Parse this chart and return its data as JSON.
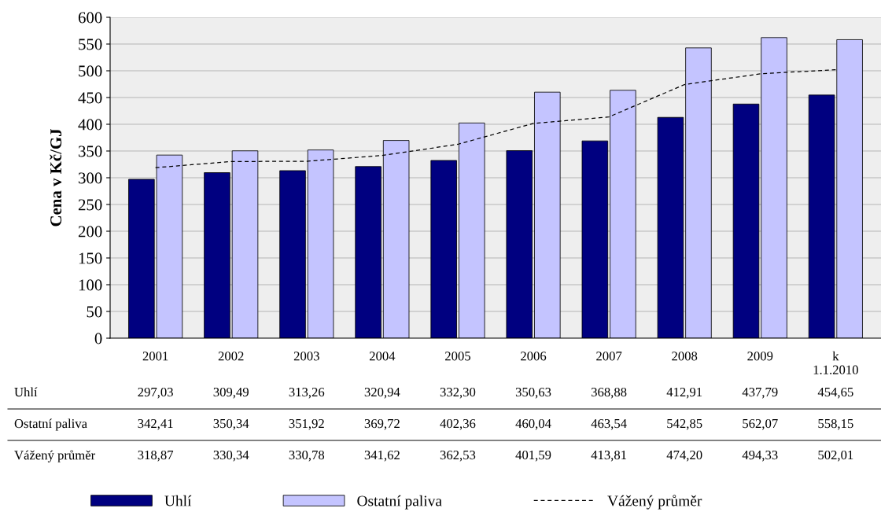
{
  "chart_data": {
    "type": "bar",
    "ylabel": "Cena v Kč/GJ",
    "categories": [
      "2001",
      "2002",
      "2003",
      "2004",
      "2005",
      "2006",
      "2007",
      "2008",
      "2009",
      "k\n1.1.2010"
    ],
    "series": [
      {
        "name": "Uhlí",
        "color": "#000080",
        "values": [
          297.03,
          309.49,
          313.26,
          320.94,
          332.3,
          350.63,
          368.88,
          412.91,
          437.79,
          454.65
        ],
        "value_labels": [
          "297,03",
          "309,49",
          "313,26",
          "320,94",
          "332,30",
          "350,63",
          "368,88",
          "412,91",
          "437,79",
          "454,65"
        ]
      },
      {
        "name": "Ostatní paliva",
        "color": "#c4c4ff",
        "values": [
          342.41,
          350.34,
          351.92,
          369.72,
          402.36,
          460.04,
          463.54,
          542.85,
          562.07,
          558.15
        ],
        "value_labels": [
          "342,41",
          "350,34",
          "351,92",
          "369,72",
          "402,36",
          "460,04",
          "463,54",
          "542,85",
          "562,07",
          "558,15"
        ]
      },
      {
        "name": "Vážený průměr",
        "type": "line",
        "line_style": "dashed",
        "color": "#000000",
        "values": [
          318.87,
          330.34,
          330.78,
          341.62,
          362.53,
          401.59,
          413.81,
          474.2,
          494.33,
          502.01
        ],
        "value_labels": [
          "318,87",
          "330,34",
          "330,78",
          "341,62",
          "362,53",
          "401,59",
          "413,81",
          "474,20",
          "494,33",
          "502,01"
        ]
      }
    ],
    "ylim": [
      0,
      600
    ],
    "yticks": [
      0,
      50,
      100,
      150,
      200,
      250,
      300,
      350,
      400,
      450,
      500,
      550,
      600
    ],
    "grid": "y",
    "legend": "bottom"
  }
}
